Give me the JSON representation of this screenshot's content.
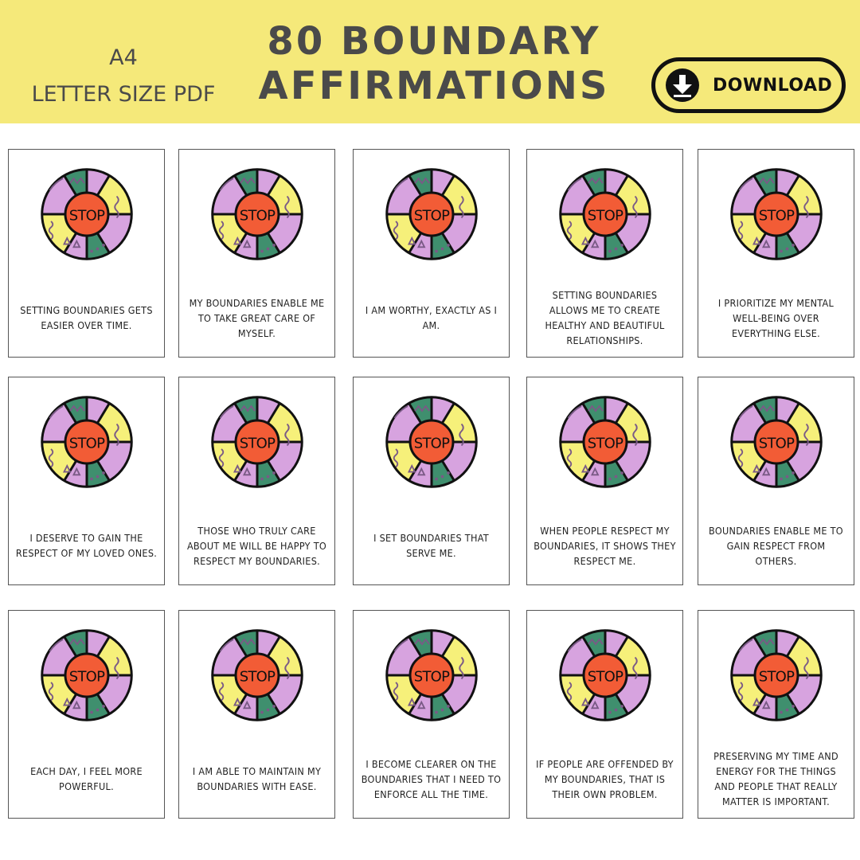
{
  "header": {
    "format_line1": "A4",
    "format_line2": "LETTER SIZE PDF",
    "title_line1": "80 BOUNDARY",
    "title_line2": "AFFIRMATIONS",
    "download_label": "DOWNLOAD",
    "download_icon": "download-arrow-icon",
    "background_color": "#f5e97a"
  },
  "card_icon": {
    "name": "stop-wheel-icon",
    "center_text": "STOP",
    "colors": {
      "green": "#3f8f6e",
      "purple": "#d7a3df",
      "yellow": "#f6f07a",
      "center": "#f25c36"
    }
  },
  "cards": [
    {
      "text": "SETTING BOUNDARIES GETS EASIER OVER TIME."
    },
    {
      "text": "MY BOUNDARIES ENABLE ME TO TAKE GREAT CARE OF MYSELF."
    },
    {
      "text": "I AM WORTHY, EXACTLY AS I AM."
    },
    {
      "text": "SETTING BOUNDARIES ALLOWS ME TO CREATE HEALTHY AND BEAUTIFUL RELATIONSHIPS."
    },
    {
      "text": "I PRIORITIZE MY MENTAL WELL-BEING OVER EVERYTHING ELSE."
    },
    {
      "text": "I DESERVE TO GAIN THE RESPECT OF MY LOVED ONES."
    },
    {
      "text": "THOSE WHO TRULY CARE ABOUT ME WILL BE HAPPY TO RESPECT MY BOUNDARIES."
    },
    {
      "text": "I SET BOUNDARIES THAT SERVE ME."
    },
    {
      "text": "WHEN PEOPLE RESPECT MY BOUNDARIES, IT SHOWS THEY RESPECT ME."
    },
    {
      "text": "BOUNDARIES ENABLE ME TO GAIN RESPECT FROM OTHERS."
    },
    {
      "text": "EACH DAY, I FEEL MORE POWERFUL."
    },
    {
      "text": "I AM ABLE TO MAINTAIN MY BOUNDARIES WITH EASE."
    },
    {
      "text": "I BECOME CLEARER ON THE BOUNDARIES THAT I NEED TO ENFORCE ALL THE TIME."
    },
    {
      "text": "IF PEOPLE ARE OFFENDED BY MY BOUNDARIES, THAT IS THEIR OWN PROBLEM."
    },
    {
      "text": "PRESERVING MY TIME AND ENERGY FOR THE THINGS AND PEOPLE THAT REALLY MATTER IS IMPORTANT."
    }
  ]
}
